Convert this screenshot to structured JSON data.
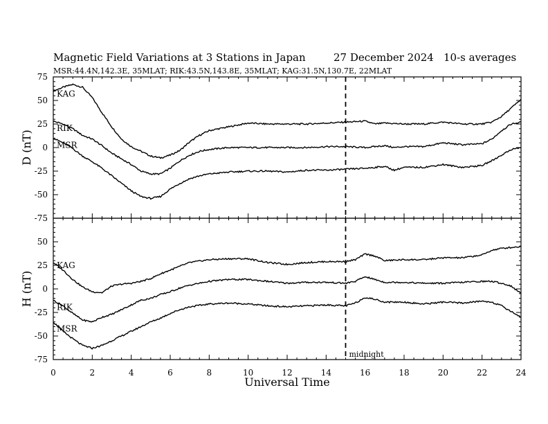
{
  "header": {
    "title": "Magnetic Field Variations at 3 Stations in Japan",
    "date": "27 December 2024",
    "averaging": "10-s averages",
    "stations": "MSR:44.4N,142.3E, 35MLAT;  RIK:43.5N,143.8E, 35MLAT;  KAG:31.5N,130.7E, 22MLAT"
  },
  "chart_data": {
    "type": "line",
    "xlabel": "Universal Time",
    "xlim": [
      0,
      24
    ],
    "xticks": [
      "0",
      "2",
      "4",
      "6",
      "8",
      "10",
      "12",
      "14",
      "16",
      "18",
      "20",
      "22",
      "24"
    ],
    "midnight_ut": 15,
    "midnight_label": "midnight",
    "line_color": "#000000",
    "panels": [
      {
        "component": "D",
        "ylabel": "D (nT)",
        "ylim": [
          -75,
          75
        ],
        "yticks": [
          "75",
          "50",
          "25",
          "0",
          "-25",
          "-50",
          "-75"
        ],
        "series": [
          {
            "name": "KAG",
            "x": [
              0,
              0.5,
              1,
              1.5,
              2,
              2.5,
              3,
              3.5,
              4,
              4.5,
              5,
              5.5,
              6,
              6.5,
              7,
              7.5,
              8,
              9,
              10,
              11,
              12,
              13,
              14,
              15,
              16,
              16.5,
              17,
              18,
              19,
              20,
              21,
              22,
              22.5,
              23,
              23.5,
              24
            ],
            "values": [
              60,
              64,
              67,
              64,
              53,
              37,
              22,
              9,
              1,
              -4,
              -9,
              -11,
              -8,
              -3,
              6,
              13,
              18,
              22,
              26,
              25,
              25,
              25,
              26,
              27,
              28,
              25,
              26,
              25,
              25,
              27,
              25,
              25,
              27,
              33,
              42,
              51
            ]
          },
          {
            "name": "RIK",
            "x": [
              0,
              0.5,
              1,
              1.5,
              2,
              2.5,
              3,
              3.5,
              4,
              4.5,
              5,
              5.5,
              6,
              6.5,
              7,
              7.5,
              8,
              9,
              10,
              11,
              12,
              13,
              14,
              15,
              16,
              17,
              17.5,
              18,
              19,
              20,
              21,
              22,
              22.5,
              23,
              23.5,
              24
            ],
            "values": [
              28,
              25,
              20,
              13,
              9,
              2,
              -6,
              -12,
              -18,
              -25,
              -28,
              -28,
              -22,
              -14,
              -8,
              -4,
              -2,
              0,
              0,
              0,
              0,
              0,
              1,
              1,
              0,
              2,
              0,
              1,
              1,
              5,
              3,
              4,
              9,
              18,
              25,
              27
            ]
          },
          {
            "name": "MSR",
            "x": [
              0,
              0.5,
              1,
              1.5,
              2,
              2.5,
              3,
              3.5,
              4,
              4.5,
              5,
              5.5,
              6,
              6.5,
              7,
              7.5,
              8,
              9,
              10,
              11,
              12,
              13,
              14,
              15,
              16,
              17,
              17.5,
              18,
              19,
              20,
              21,
              22,
              22.5,
              23,
              23.5,
              24
            ],
            "values": [
              10,
              5,
              -1,
              -9,
              -15,
              -22,
              -30,
              -38,
              -46,
              -52,
              -54,
              -52,
              -44,
              -38,
              -33,
              -30,
              -28,
              -26,
              -25,
              -25,
              -26,
              -24,
              -24,
              -23,
              -22,
              -20,
              -24,
              -21,
              -21,
              -18,
              -21,
              -19,
              -14,
              -8,
              -2,
              0
            ]
          }
        ]
      },
      {
        "component": "H",
        "ylabel": "H (nT)",
        "ylim": [
          -75,
          75
        ],
        "yticks": [
          "50",
          "25",
          "0",
          "-25",
          "-50",
          "-75"
        ],
        "series": [
          {
            "name": "KAG",
            "x": [
              0,
              0.5,
              1,
              1.5,
              2,
              2.5,
              3,
              3.5,
              4,
              4.5,
              5,
              5.5,
              6,
              6.5,
              7,
              8,
              9,
              10,
              11,
              12,
              13,
              14,
              15,
              15.5,
              16,
              16.5,
              17,
              18,
              19,
              20,
              21,
              22,
              22.5,
              23,
              24
            ],
            "values": [
              28,
              20,
              10,
              2,
              -3,
              -4,
              3,
              5,
              6,
              8,
              11,
              16,
              20,
              24,
              28,
              31,
              32,
              32,
              28,
              26,
              28,
              29,
              29,
              31,
              37,
              35,
              30,
              31,
              31,
              33,
              33,
              36,
              41,
              43,
              45
            ]
          },
          {
            "name": "RIK",
            "x": [
              0,
              0.5,
              1,
              1.5,
              2,
              2.5,
              3,
              3.5,
              4,
              4.5,
              5,
              5.5,
              6,
              6.5,
              7,
              8,
              9,
              10,
              11,
              12,
              13,
              14,
              15,
              15.5,
              16,
              16.5,
              17,
              18,
              19,
              20,
              21,
              22,
              22.5,
              23,
              23.5,
              24
            ],
            "values": [
              -12,
              -18,
              -26,
              -33,
              -35,
              -30,
              -27,
              -22,
              -17,
              -12,
              -10,
              -6,
              -3,
              1,
              4,
              8,
              10,
              10,
              8,
              6,
              7,
              7,
              6,
              8,
              13,
              10,
              7,
              7,
              6,
              6,
              7,
              8,
              8,
              6,
              3,
              -5
            ]
          },
          {
            "name": "MSR",
            "x": [
              0,
              0.5,
              1,
              1.5,
              2,
              2.5,
              3,
              3.5,
              4,
              4.5,
              5,
              5.5,
              6,
              6.5,
              7,
              8,
              9,
              10,
              11,
              12,
              13,
              14,
              15,
              15.5,
              16,
              16.5,
              17,
              18,
              19,
              20,
              21,
              22,
              22.5,
              23,
              23.5,
              24
            ],
            "values": [
              -35,
              -45,
              -53,
              -60,
              -63,
              -60,
              -55,
              -50,
              -45,
              -40,
              -35,
              -31,
              -26,
              -22,
              -19,
              -16,
              -15,
              -16,
              -18,
              -19,
              -18,
              -17,
              -18,
              -15,
              -9,
              -11,
              -14,
              -14,
              -16,
              -14,
              -15,
              -13,
              -14,
              -18,
              -24,
              -30
            ]
          }
        ]
      }
    ]
  }
}
